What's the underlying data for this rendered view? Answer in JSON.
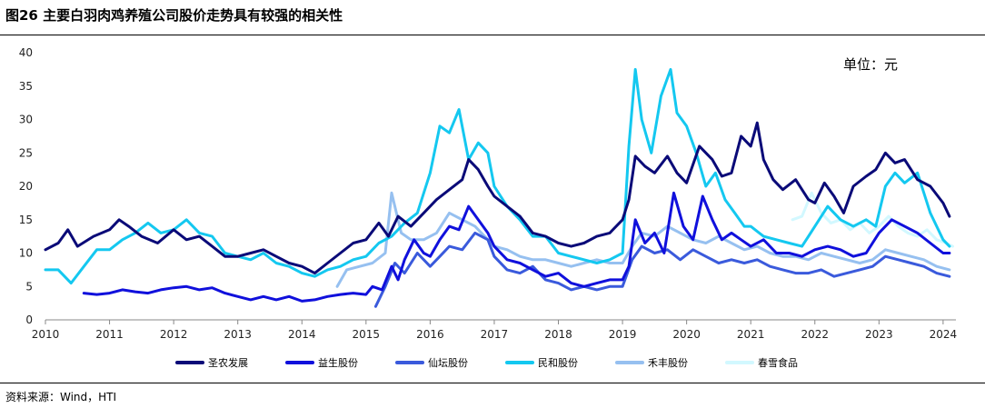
{
  "figure": {
    "title": "图26 主要白羽肉鸡养殖公司股价走势具有较强的相关性",
    "unit_note": "单位：元",
    "source": "资料来源：Wind，HTI"
  },
  "chart_data": {
    "type": "line",
    "title": "图26 主要白羽肉鸡养殖公司股价走势具有较强的相关性",
    "xlabel": "",
    "ylabel": "",
    "unit": "单位：元",
    "x_ticks": [
      "2010",
      "2011",
      "2012",
      "2013",
      "2014",
      "2015",
      "2016",
      "2017",
      "2018",
      "2019",
      "2020",
      "2021",
      "2022",
      "2023",
      "2024"
    ],
    "y_ticks": [
      0,
      5,
      10,
      15,
      20,
      25,
      30,
      35,
      40
    ],
    "xlim": [
      2010.0,
      2024.2
    ],
    "ylim": [
      0,
      40
    ],
    "grid": false,
    "legend_position": "bottom",
    "series": [
      {
        "name": "圣农发展",
        "color": "#0a0a78",
        "x": [
          2010.0,
          2010.2,
          2010.35,
          2010.5,
          2010.75,
          2011.0,
          2011.15,
          2011.3,
          2011.5,
          2011.75,
          2012.0,
          2012.2,
          2012.4,
          2012.6,
          2012.8,
          2013.0,
          2013.2,
          2013.4,
          2013.6,
          2013.8,
          2014.0,
          2014.2,
          2014.4,
          2014.6,
          2014.8,
          2015.0,
          2015.2,
          2015.35,
          2015.5,
          2015.7,
          2015.9,
          2016.1,
          2016.3,
          2016.5,
          2016.6,
          2016.75,
          2016.9,
          2017.0,
          2017.2,
          2017.4,
          2017.6,
          2017.8,
          2018.0,
          2018.2,
          2018.4,
          2018.6,
          2018.8,
          2019.0,
          2019.1,
          2019.2,
          2019.35,
          2019.5,
          2019.7,
          2019.85,
          2020.0,
          2020.2,
          2020.4,
          2020.55,
          2020.7,
          2020.85,
          2021.0,
          2021.1,
          2021.2,
          2021.35,
          2021.5,
          2021.7,
          2021.9,
          2022.0,
          2022.15,
          2022.3,
          2022.45,
          2022.6,
          2022.8,
          2022.95,
          2023.1,
          2023.25,
          2023.4,
          2023.6,
          2023.8,
          2024.0,
          2024.1
        ],
        "values": [
          10.5,
          11.5,
          13.5,
          11.0,
          12.5,
          13.5,
          15.0,
          14.0,
          12.5,
          11.5,
          13.5,
          12.0,
          12.5,
          11.0,
          9.5,
          9.5,
          10.0,
          10.5,
          9.5,
          8.5,
          8.0,
          7.0,
          8.5,
          10.0,
          11.5,
          12.0,
          14.5,
          12.5,
          15.5,
          14.0,
          16.0,
          18.0,
          19.5,
          21.0,
          24.0,
          22.5,
          20.0,
          18.5,
          17.0,
          15.5,
          13.0,
          12.5,
          11.5,
          11.0,
          11.5,
          12.5,
          13.0,
          15.0,
          18.0,
          24.5,
          23.0,
          22.0,
          24.5,
          22.0,
          20.5,
          26.0,
          24.0,
          21.5,
          22.0,
          27.5,
          26.0,
          29.5,
          24.0,
          21.0,
          19.5,
          21.0,
          18.0,
          17.5,
          20.5,
          18.5,
          16.0,
          20.0,
          21.5,
          22.5,
          25.0,
          23.5,
          24.0,
          21.0,
          20.0,
          17.5,
          15.5
        ]
      },
      {
        "name": "益生股份",
        "color": "#1010dc",
        "x": [
          2010.6,
          2010.8,
          2011.0,
          2011.2,
          2011.4,
          2011.6,
          2011.8,
          2012.0,
          2012.2,
          2012.4,
          2012.6,
          2012.8,
          2013.0,
          2013.2,
          2013.4,
          2013.6,
          2013.8,
          2014.0,
          2014.2,
          2014.4,
          2014.6,
          2014.8,
          2015.0,
          2015.1,
          2015.25,
          2015.4,
          2015.5,
          2015.6,
          2015.75,
          2015.9,
          2016.0,
          2016.15,
          2016.3,
          2016.45,
          2016.6,
          2016.75,
          2016.9,
          2017.0,
          2017.2,
          2017.4,
          2017.6,
          2017.8,
          2018.0,
          2018.2,
          2018.4,
          2018.6,
          2018.8,
          2019.0,
          2019.1,
          2019.2,
          2019.35,
          2019.5,
          2019.65,
          2019.8,
          2019.95,
          2020.1,
          2020.25,
          2020.4,
          2020.55,
          2020.7,
          2020.85,
          2021.0,
          2021.2,
          2021.4,
          2021.6,
          2021.8,
          2022.0,
          2022.2,
          2022.4,
          2022.6,
          2022.8,
          2023.0,
          2023.2,
          2023.4,
          2023.6,
          2023.8,
          2024.0,
          2024.1
        ],
        "values": [
          4.0,
          3.8,
          4.0,
          4.5,
          4.2,
          4.0,
          4.5,
          4.8,
          5.0,
          4.5,
          4.8,
          4.0,
          3.5,
          3.0,
          3.5,
          3.0,
          3.5,
          2.8,
          3.0,
          3.5,
          3.8,
          4.0,
          3.8,
          5.0,
          4.5,
          8.0,
          6.0,
          9.0,
          12.0,
          10.0,
          9.5,
          12.0,
          14.0,
          13.5,
          17.0,
          15.0,
          13.0,
          11.0,
          9.0,
          8.5,
          7.5,
          6.5,
          7.0,
          5.5,
          5.0,
          5.5,
          6.0,
          6.0,
          8.0,
          15.0,
          11.5,
          13.0,
          10.0,
          19.0,
          14.0,
          12.0,
          18.5,
          15.0,
          12.0,
          13.0,
          12.0,
          11.0,
          12.0,
          10.0,
          10.0,
          9.5,
          10.5,
          11.0,
          10.5,
          9.5,
          10.0,
          13.0,
          15.0,
          14.0,
          13.0,
          11.5,
          10.0,
          10.0
        ]
      },
      {
        "name": "仙坛股份",
        "color": "#3a5adc",
        "x": [
          2015.15,
          2015.3,
          2015.45,
          2015.6,
          2015.8,
          2016.0,
          2016.15,
          2016.3,
          2016.5,
          2016.7,
          2016.9,
          2017.0,
          2017.2,
          2017.4,
          2017.6,
          2017.8,
          2018.0,
          2018.2,
          2018.4,
          2018.6,
          2018.8,
          2019.0,
          2019.15,
          2019.3,
          2019.5,
          2019.7,
          2019.9,
          2020.1,
          2020.3,
          2020.5,
          2020.7,
          2020.9,
          2021.1,
          2021.3,
          2021.5,
          2021.7,
          2021.9,
          2022.1,
          2022.3,
          2022.5,
          2022.7,
          2022.9,
          2023.1,
          2023.3,
          2023.5,
          2023.7,
          2023.9,
          2024.1
        ],
        "values": [
          2.0,
          5.0,
          8.5,
          7.0,
          10.0,
          8.0,
          9.5,
          11.0,
          10.5,
          13.0,
          12.0,
          9.5,
          7.5,
          7.0,
          8.0,
          6.0,
          5.5,
          4.5,
          5.0,
          4.5,
          5.0,
          5.0,
          9.0,
          11.0,
          10.0,
          10.5,
          9.0,
          10.5,
          9.5,
          8.5,
          9.0,
          8.5,
          9.0,
          8.0,
          7.5,
          7.0,
          7.0,
          7.5,
          6.5,
          7.0,
          7.5,
          8.0,
          9.5,
          9.0,
          8.5,
          8.0,
          7.0,
          6.5
        ]
      },
      {
        "name": "民和股份",
        "color": "#14c8f0",
        "x": [
          2010.0,
          2010.2,
          2010.4,
          2010.6,
          2010.8,
          2011.0,
          2011.2,
          2011.4,
          2011.6,
          2011.8,
          2012.0,
          2012.2,
          2012.4,
          2012.6,
          2012.8,
          2013.0,
          2013.2,
          2013.4,
          2013.6,
          2013.8,
          2014.0,
          2014.2,
          2014.4,
          2014.6,
          2014.8,
          2015.0,
          2015.2,
          2015.4,
          2015.6,
          2015.8,
          2016.0,
          2016.15,
          2016.3,
          2016.45,
          2016.6,
          2016.75,
          2016.9,
          2017.0,
          2017.2,
          2017.4,
          2017.6,
          2017.8,
          2018.0,
          2018.2,
          2018.4,
          2018.6,
          2018.8,
          2019.0,
          2019.1,
          2019.2,
          2019.3,
          2019.45,
          2019.6,
          2019.75,
          2019.85,
          2020.0,
          2020.15,
          2020.3,
          2020.45,
          2020.6,
          2020.75,
          2020.9,
          2021.0,
          2021.2,
          2021.4,
          2021.6,
          2021.8,
          2022.0,
          2022.2,
          2022.4,
          2022.6,
          2022.8,
          2022.95,
          2023.1,
          2023.25,
          2023.4,
          2023.6,
          2023.8,
          2024.0,
          2024.1
        ],
        "values": [
          7.5,
          7.5,
          5.5,
          8.0,
          10.5,
          10.5,
          12.0,
          13.0,
          14.5,
          13.0,
          13.5,
          15.0,
          13.0,
          12.5,
          10.0,
          9.5,
          9.0,
          10.0,
          8.5,
          8.0,
          7.0,
          6.5,
          7.5,
          8.0,
          9.0,
          9.5,
          11.5,
          12.5,
          14.5,
          16.0,
          22.0,
          29.0,
          28.0,
          31.5,
          24.0,
          26.5,
          25.0,
          20.0,
          17.0,
          15.0,
          12.5,
          12.5,
          10.0,
          9.5,
          9.0,
          8.5,
          9.0,
          10.0,
          26.0,
          37.5,
          30.0,
          25.0,
          33.5,
          37.5,
          31.0,
          29.0,
          25.0,
          20.0,
          22.0,
          18.0,
          16.0,
          14.0,
          14.0,
          12.5,
          12.0,
          11.5,
          11.0,
          14.0,
          17.0,
          15.0,
          14.0,
          15.0,
          14.0,
          20.0,
          22.0,
          20.5,
          22.0,
          16.0,
          12.0,
          11.0
        ]
      },
      {
        "name": "禾丰股份",
        "color": "#96c0f0",
        "x": [
          2014.55,
          2014.7,
          2014.9,
          2015.1,
          2015.3,
          2015.4,
          2015.55,
          2015.7,
          2015.9,
          2016.1,
          2016.3,
          2016.5,
          2016.7,
          2016.9,
          2017.0,
          2017.2,
          2017.4,
          2017.6,
          2017.8,
          2018.0,
          2018.2,
          2018.4,
          2018.6,
          2018.8,
          2019.0,
          2019.15,
          2019.3,
          2019.5,
          2019.7,
          2019.9,
          2020.1,
          2020.3,
          2020.5,
          2020.7,
          2020.9,
          2021.1,
          2021.3,
          2021.5,
          2021.7,
          2021.9,
          2022.1,
          2022.3,
          2022.5,
          2022.7,
          2022.9,
          2023.1,
          2023.3,
          2023.5,
          2023.7,
          2023.9,
          2024.1
        ],
        "values": [
          5.0,
          7.5,
          8.0,
          8.5,
          10.0,
          19.0,
          13.0,
          12.0,
          12.0,
          13.0,
          16.0,
          15.0,
          14.0,
          12.0,
          11.0,
          10.5,
          9.5,
          9.0,
          9.0,
          8.5,
          8.0,
          8.5,
          9.0,
          8.5,
          8.5,
          11.0,
          13.0,
          12.5,
          14.0,
          13.0,
          12.0,
          11.5,
          12.5,
          11.5,
          10.5,
          11.0,
          10.0,
          9.5,
          9.5,
          9.0,
          10.0,
          9.5,
          9.0,
          8.5,
          9.0,
          10.5,
          10.0,
          9.5,
          9.0,
          8.0,
          7.5
        ]
      },
      {
        "name": "春雪食品",
        "color": "#d2f8ff",
        "x": [
          2021.65,
          2021.8,
          2021.95,
          2022.1,
          2022.25,
          2022.4,
          2022.55,
          2022.7,
          2022.85,
          2023.0,
          2023.15,
          2023.3,
          2023.45,
          2023.6,
          2023.75,
          2023.9,
          2024.05,
          2024.15
        ],
        "values": [
          15.0,
          15.5,
          19.0,
          16.0,
          14.5,
          15.0,
          13.5,
          14.5,
          13.0,
          14.0,
          15.5,
          14.0,
          13.0,
          12.5,
          13.5,
          12.0,
          11.5,
          11.0
        ]
      }
    ]
  }
}
